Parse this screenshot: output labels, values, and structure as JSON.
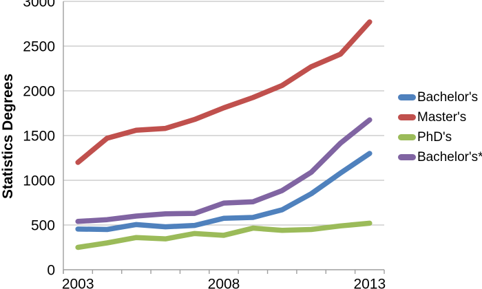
{
  "chart_data": {
    "type": "line",
    "title": "",
    "ylabel": "Statistics Degrees",
    "xlabel": "",
    "years": [
      2003,
      2004,
      2005,
      2006,
      2007,
      2008,
      2009,
      2010,
      2011,
      2012,
      2013
    ],
    "x_axis_labeled_years": [
      2003,
      2008,
      2013
    ],
    "ylim": [
      0,
      3000
    ],
    "y_ticks": [
      0,
      500,
      1000,
      1500,
      2000,
      2500,
      3000
    ],
    "grid": "horizontal gridlines on",
    "legend_position": "right",
    "series": [
      {
        "name": "Bachelor's",
        "color": "#4F81BD",
        "values": [
          455,
          450,
          505,
          480,
          495,
          575,
          585,
          670,
          850,
          1080,
          1300
        ]
      },
      {
        "name": "Master's",
        "color": "#C0504D",
        "values": [
          1200,
          1470,
          1560,
          1580,
          1680,
          1810,
          1925,
          2060,
          2270,
          2410,
          2770
        ]
      },
      {
        "name": "PhD's",
        "color": "#9BBB59",
        "values": [
          250,
          300,
          360,
          345,
          405,
          385,
          465,
          440,
          450,
          490,
          520
        ]
      },
      {
        "name": "Bachelor's*",
        "color": "#8064A2",
        "values": [
          540,
          560,
          600,
          625,
          630,
          745,
          760,
          885,
          1090,
          1415,
          1675
        ]
      }
    ],
    "axis_color": "#9E9E9E",
    "gridline_color": "#C4C4C4",
    "text_color": "#000000",
    "line_width": 7.5
  }
}
